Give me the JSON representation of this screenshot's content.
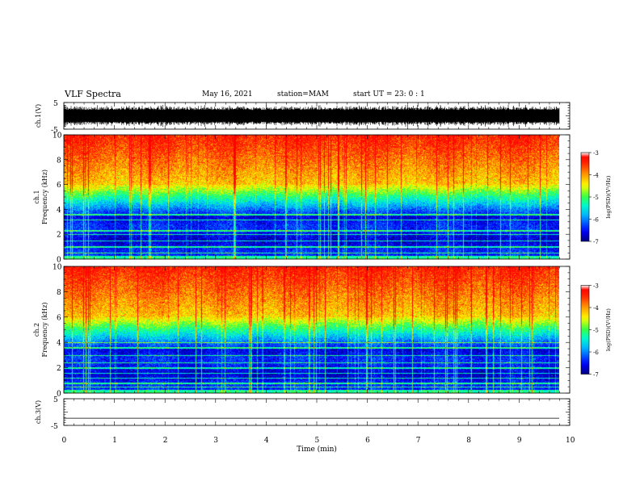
{
  "header": {
    "title": "VLF Spectra",
    "date": "May 16, 2021",
    "station": "station=MAM",
    "start": "start  UT =  23: 0  : 1"
  },
  "chart_data": [
    {
      "type": "line",
      "panel": "ch1-waveform",
      "ylabel": "ch.1(V)",
      "ylim": [
        -5,
        5
      ],
      "yticks": [
        "5",
        "-5"
      ],
      "xlim": [
        0,
        10
      ],
      "description_values": "dense VLF waveform noise, amplitude approx -5 to 5 V",
      "color": "#000000"
    },
    {
      "type": "heatmap",
      "panel": "ch1-spectrogram",
      "ylabel": "ch.1\nFrequency (kHz)",
      "ylabel_lines": [
        "ch.1",
        "Frequency (kHz)"
      ],
      "ylim": [
        0,
        10
      ],
      "yticks": [
        "0",
        "2",
        "4",
        "6",
        "8",
        "10"
      ],
      "xlim": [
        0,
        9.8
      ],
      "colorbar": {
        "label": "log(PSD)(V²/Hz)",
        "range": [
          -7,
          -3
        ],
        "ticks": [
          "-3",
          "-4",
          "-5",
          "-6",
          "-7"
        ],
        "colors": [
          "#000080",
          "#0000ff",
          "#00aaff",
          "#00ffaa",
          "#55ff00",
          "#ffff00",
          "#ff8000",
          "#ff0000",
          "#ffffff"
        ]
      },
      "structure": {
        "low_power_band_kHz": [
          0.5,
          3.5
        ],
        "transition_band_kHz": [
          3.5,
          6
        ],
        "high_power_band_kHz": [
          6,
          10
        ],
        "horizontal_lines_kHz": [
          0.5,
          1.0,
          1.5,
          2.0,
          2.3,
          3.2,
          3.6
        ]
      }
    },
    {
      "type": "heatmap",
      "panel": "ch2-spectrogram",
      "ylabel": "ch.2\nFrequency (kHz)",
      "ylabel_lines": [
        "ch.2",
        "Frequency (kHz)"
      ],
      "ylim": [
        0,
        10
      ],
      "yticks": [
        "0",
        "2",
        "4",
        "6",
        "8",
        "10"
      ],
      "xlim": [
        0,
        9.8
      ],
      "colorbar": {
        "label": "log(PSD)(V²/Hz)",
        "range": [
          -7,
          -3
        ],
        "ticks": [
          "-3",
          "-4",
          "-5",
          "-6",
          "-7"
        ],
        "colors": [
          "#000080",
          "#0000ff",
          "#00aaff",
          "#00ffaa",
          "#55ff00",
          "#ffff00",
          "#ff8000",
          "#ff0000",
          "#ffffff"
        ]
      },
      "structure": {
        "low_power_band_kHz": [
          0.3,
          3.5
        ],
        "transition_band_kHz": [
          3.5,
          6
        ],
        "high_power_band_kHz": [
          6,
          10
        ],
        "horizontal_lines_kHz": [
          0.5,
          0.8,
          1.2,
          1.6,
          2.0,
          2.4,
          3.0,
          3.6,
          4.0
        ]
      }
    },
    {
      "type": "line",
      "panel": "ch3-waveform",
      "ylabel": "ch.3(V)",
      "ylim": [
        -5,
        5
      ],
      "yticks": [
        "5",
        "-5"
      ],
      "xlim": [
        0,
        10
      ],
      "values_constant": -2.3,
      "xlabel": "Time (min)",
      "xticks": [
        "0",
        "1",
        "2",
        "3",
        "4",
        "5",
        "6",
        "7",
        "8",
        "9",
        "10"
      ],
      "color": "#000000"
    }
  ]
}
